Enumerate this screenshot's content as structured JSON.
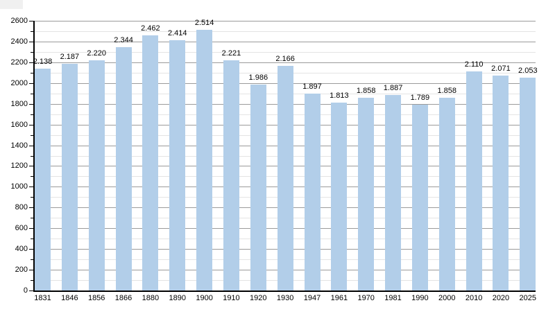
{
  "page": {
    "background": "#ffffff"
  },
  "decorations": {
    "corner_box_color": "#f0f0f0"
  },
  "chart_data": {
    "type": "bar",
    "title": "",
    "xlabel": "",
    "ylabel": "",
    "categories": [
      "1831",
      "1846",
      "1856",
      "1866",
      "1880",
      "1890",
      "1900",
      "1910",
      "1920",
      "1930",
      "1947",
      "1961",
      "1970",
      "1981",
      "1990",
      "2000",
      "2010",
      "2020",
      "2025"
    ],
    "values": [
      2138,
      2187,
      2220,
      2344,
      2462,
      2414,
      2514,
      2221,
      1986,
      2166,
      1897,
      1813,
      1858,
      1887,
      1789,
      1858,
      2110,
      2071,
      2053
    ],
    "value_labels": [
      "2.138",
      "2.187",
      "2.220",
      "2.344",
      "2.462",
      "2.414",
      "2.514",
      "2.221",
      "1.986",
      "2.166",
      "1.897",
      "1.813",
      "1.858",
      "1.887",
      "1.789",
      "1.858",
      "2.110",
      "2.071",
      "2.053"
    ],
    "y_ticks": [
      0,
      200,
      400,
      600,
      800,
      1000,
      1200,
      1400,
      1600,
      1800,
      2000,
      2200,
      2400,
      2600
    ],
    "ylim": [
      0,
      2600
    ],
    "ytick_step": 200,
    "yminor_step": 100,
    "grid": "on",
    "legend": "none",
    "colors": {
      "bar": "#b2cee9",
      "grid_major": "#9a9a9a",
      "grid_minor": "#e4e4e4",
      "axis": "#000000",
      "text": "#000000"
    }
  }
}
